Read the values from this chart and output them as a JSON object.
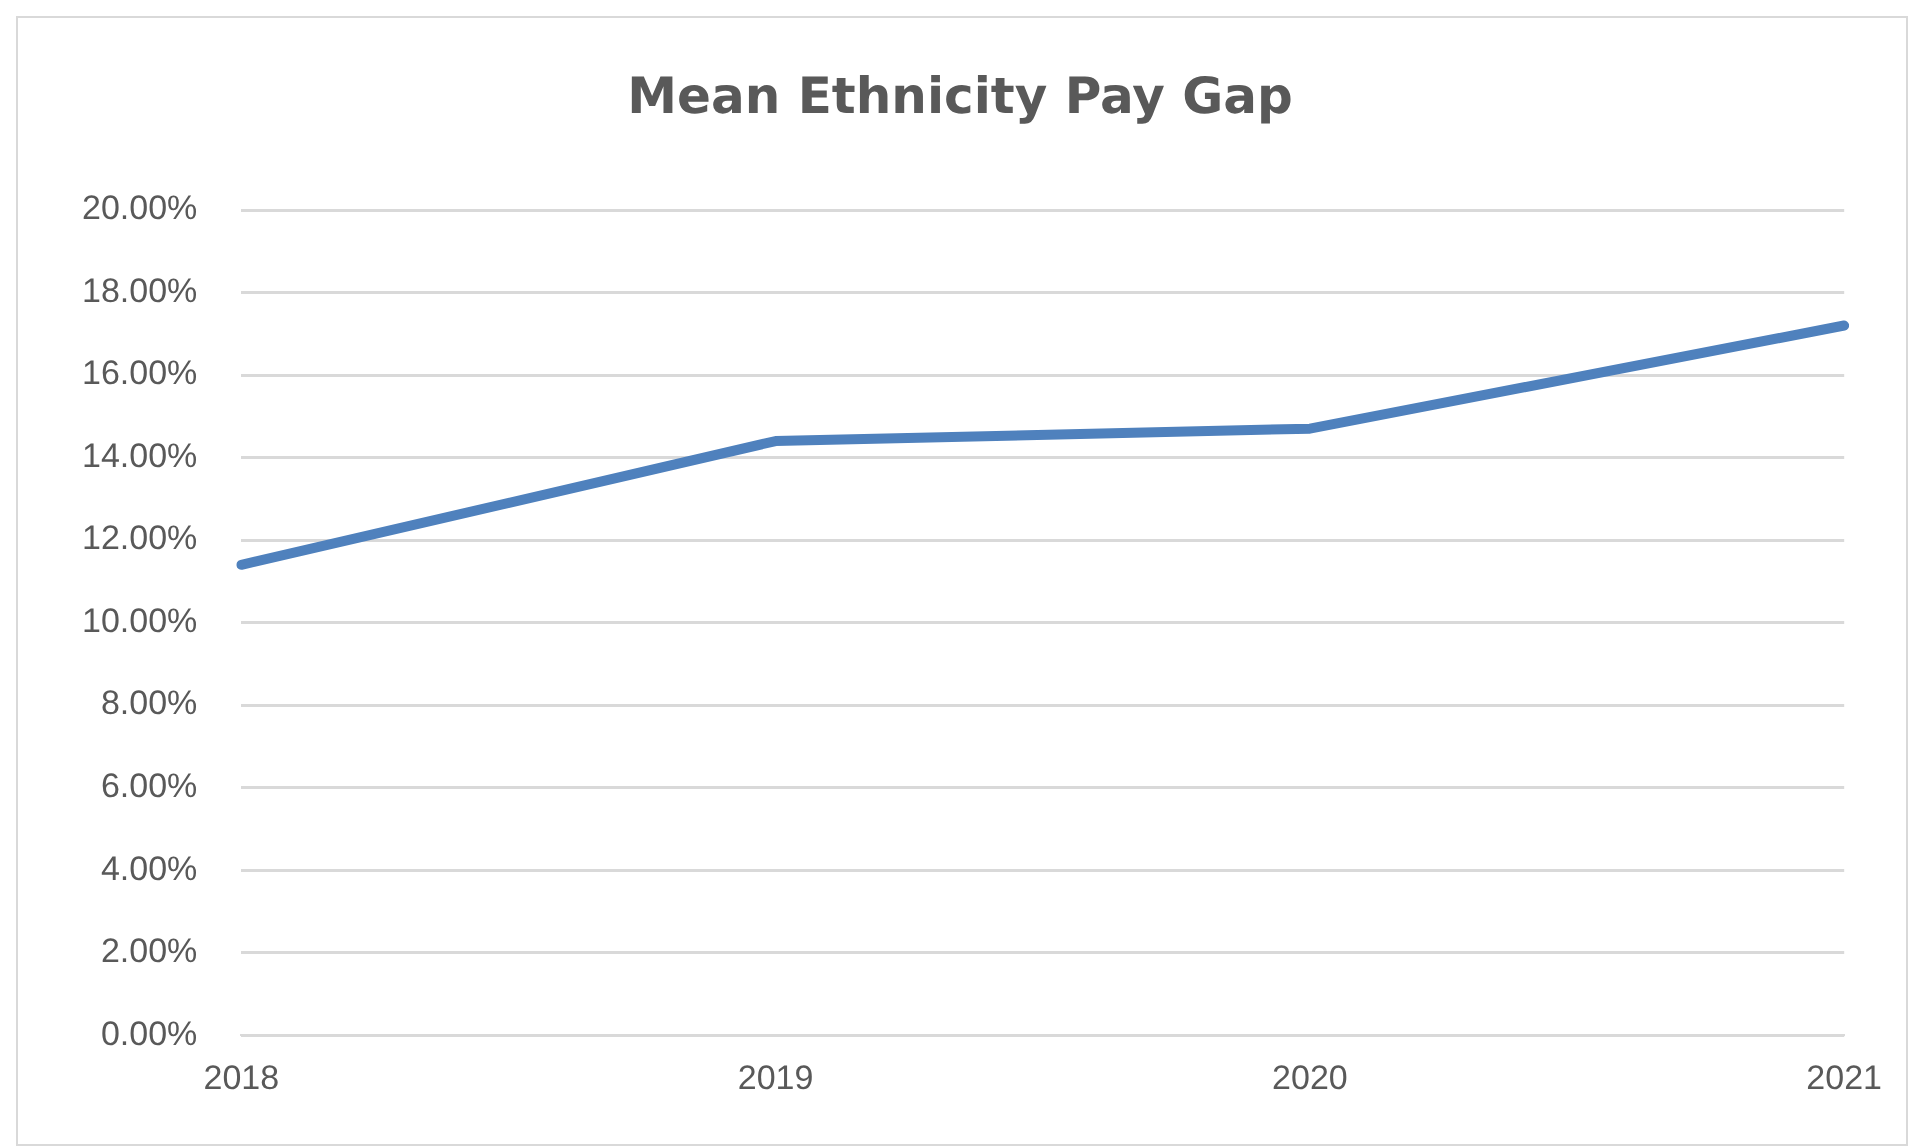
{
  "chart_data": {
    "type": "line",
    "title": "Mean Ethnicity Pay Gap",
    "categories": [
      "2018",
      "2019",
      "2020",
      "2021"
    ],
    "series": [
      {
        "color": "#4f81bd",
        "values": [
          11.4,
          14.4,
          14.7,
          17.2
        ]
      }
    ],
    "ylim": [
      0,
      20
    ],
    "yticks": [
      {
        "value": 0,
        "label": "0.00%"
      },
      {
        "value": 2,
        "label": "2.00%"
      },
      {
        "value": 4,
        "label": "4.00%"
      },
      {
        "value": 6,
        "label": "6.00%"
      },
      {
        "value": 8,
        "label": "8.00%"
      },
      {
        "value": 10,
        "label": "10.00%"
      },
      {
        "value": 12,
        "label": "12.00%"
      },
      {
        "value": 14,
        "label": "14.00%"
      },
      {
        "value": 16,
        "label": "16.00%"
      },
      {
        "value": 18,
        "label": "18.00%"
      },
      {
        "value": 20,
        "label": "20.00%"
      }
    ],
    "grid": "y",
    "legend": false,
    "marker": "none",
    "line_style": "solid"
  }
}
